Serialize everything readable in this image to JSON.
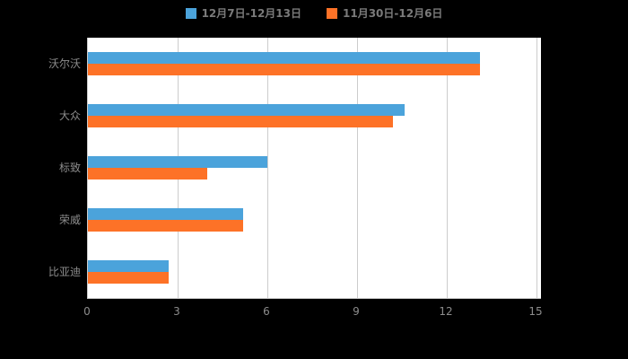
{
  "page": {
    "background_color": "#000000",
    "plot_background_color": "#ffffff",
    "text_color": "#8c8c8c",
    "gridline_color": "#cccccc"
  },
  "chart_data": {
    "type": "bar",
    "orientation": "horizontal",
    "title": "",
    "categories": [
      "沃尔沃",
      "大众",
      "标致",
      "荣威",
      "比亚迪"
    ],
    "series": [
      {
        "name": "12月7日-12月13日",
        "color": "#4ba3db",
        "values": [
          13.1,
          10.6,
          6.0,
          5.2,
          2.7
        ]
      },
      {
        "name": "11月30日-12月6日",
        "color": "#fd7227",
        "values": [
          13.1,
          10.2,
          4.0,
          5.2,
          2.7
        ]
      }
    ],
    "x_axis": {
      "ticks": [
        0,
        3,
        6,
        9,
        12,
        15
      ],
      "max": 15,
      "label": ""
    },
    "y_axis": {
      "label": ""
    },
    "grid": true,
    "legend_position": "top"
  }
}
